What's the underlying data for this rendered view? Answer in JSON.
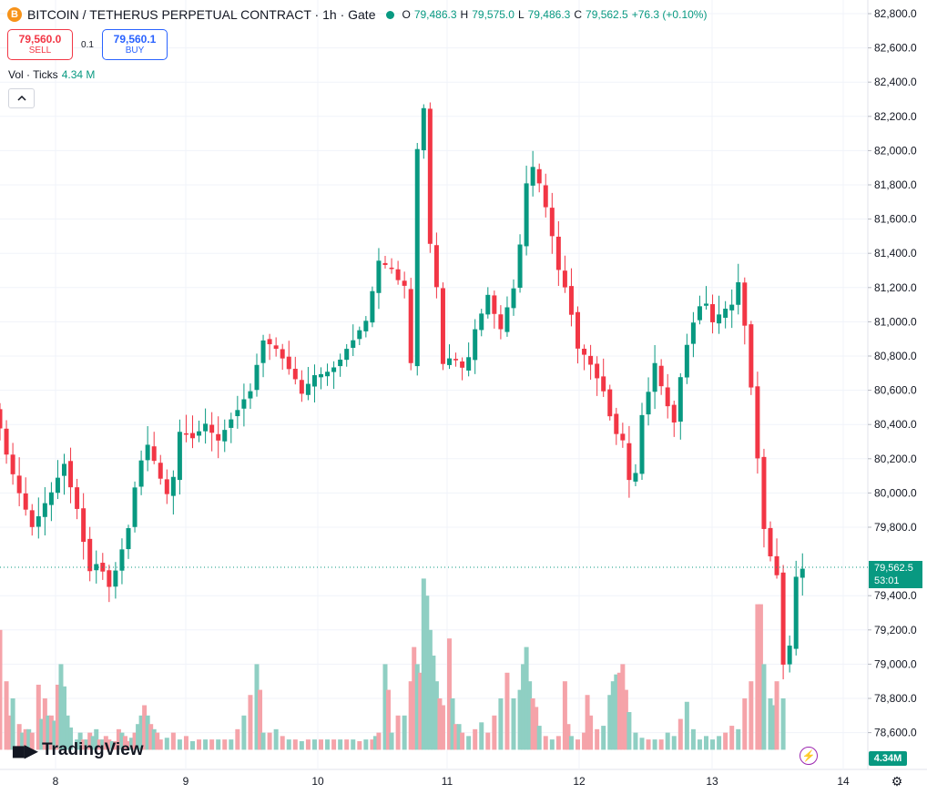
{
  "header": {
    "coin_icon": "B",
    "symbol_line": "BITCOIN / TETHERUS PERPETUAL CONTRACT · 1h · Gate",
    "status_color": "#089981",
    "ohlc": {
      "o_label": "O",
      "o_value": "79,486.3",
      "h_label": "H",
      "h_value": "79,575.0",
      "l_label": "L",
      "l_value": "79,486.3",
      "c_label": "C",
      "c_value": "79,562.5",
      "change": "+76.3 (+0.10%)"
    }
  },
  "trade": {
    "sell_price": "79,560.0",
    "sell_label": "SELL",
    "spread": "0.1",
    "buy_price": "79,560.1",
    "buy_label": "BUY"
  },
  "volume_legend": {
    "label": "Vol · Ticks",
    "value": "4.34 M"
  },
  "collapse_icon": "chevron-up-icon",
  "logo_text": "TradingView",
  "price_tag": {
    "price": "79,562.5",
    "countdown": "53:01"
  },
  "volume_tag": "4.34M",
  "colors": {
    "up": "#089981",
    "down": "#f23645",
    "up_vol": "#8fcfc3",
    "down_vol": "#f5a3a9"
  },
  "chart_data": {
    "type": "candlestick",
    "interval": "1h",
    "y_ticks": [
      "82,800.0",
      "82,600.0",
      "82,400.0",
      "82,200.0",
      "82,000.0",
      "81,800.0",
      "81,600.0",
      "81,400.0",
      "81,200.0",
      "81,000.0",
      "80,800.0",
      "80,600.0",
      "80,400.0",
      "80,200.0",
      "80,000.0",
      "79,800.0",
      "79,400.0",
      "79,200.0",
      "79,000.0",
      "78,800.0",
      "78,600.0"
    ],
    "ylim": [
      78500,
      82860
    ],
    "x_ticks": [
      "8",
      "9",
      "10",
      "11",
      "12",
      "13",
      "14"
    ],
    "last_price": 79562.5,
    "current_ohlc": {
      "open": 79486.3,
      "high": 79575.0,
      "low": 79486.3,
      "close": 79562.5
    },
    "path": [
      [
        0,
        80500
      ],
      [
        3,
        80100
      ],
      [
        6,
        79800
      ],
      [
        9,
        80000
      ],
      [
        11,
        80180
      ],
      [
        13,
        79900
      ],
      [
        15,
        79550
      ],
      [
        16.5,
        79600
      ],
      [
        18,
        79450
      ],
      [
        19.5,
        79600
      ],
      [
        21,
        79800
      ],
      [
        22.5,
        80150
      ],
      [
        24,
        80280
      ],
      [
        26,
        80080
      ],
      [
        27.5,
        79950
      ],
      [
        29,
        80350
      ],
      [
        31,
        80330
      ],
      [
        33,
        80400
      ],
      [
        35,
        80300
      ],
      [
        37,
        80440
      ],
      [
        40,
        80600
      ],
      [
        42,
        80900
      ],
      [
        44.5,
        80820
      ],
      [
        46.5,
        80700
      ],
      [
        48,
        80580
      ],
      [
        50,
        80680
      ],
      [
        52,
        80700
      ],
      [
        54,
        80780
      ],
      [
        56,
        80900
      ],
      [
        58,
        81000
      ],
      [
        60,
        81350
      ],
      [
        62,
        81300
      ],
      [
        64,
        81200
      ],
      [
        65,
        80750
      ],
      [
        66,
        82000
      ],
      [
        67,
        82250
      ],
      [
        68,
        81450
      ],
      [
        69,
        81200
      ],
      [
        70,
        80750
      ],
      [
        71.5,
        80800
      ],
      [
        73.5,
        80700
      ],
      [
        75,
        80950
      ],
      [
        77,
        81150
      ],
      [
        79,
        80950
      ],
      [
        81,
        81200
      ],
      [
        82,
        81450
      ],
      [
        83,
        81800
      ],
      [
        84,
        81900
      ],
      [
        85,
        81800
      ],
      [
        86.5,
        81600
      ],
      [
        88,
        81300
      ],
      [
        89.5,
        81150
      ],
      [
        91,
        80850
      ],
      [
        93,
        80750
      ],
      [
        95,
        80600
      ],
      [
        96.5,
        80380
      ],
      [
        98,
        80300
      ],
      [
        99.5,
        79950
      ],
      [
        101,
        80450
      ],
      [
        103,
        80750
      ],
      [
        104.5,
        80550
      ],
      [
        106,
        80420
      ],
      [
        107.5,
        80800
      ],
      [
        109,
        81000
      ],
      [
        110.5,
        81150
      ],
      [
        112,
        81000
      ],
      [
        113.5,
        81050
      ],
      [
        115,
        81100
      ],
      [
        116,
        81230
      ],
      [
        117.5,
        80850
      ],
      [
        118.5,
        80400
      ],
      [
        119.5,
        80000
      ],
      [
        120.5,
        79600
      ],
      [
        121.5,
        79650
      ],
      [
        122.5,
        79400
      ],
      [
        123.2,
        78850
      ],
      [
        124,
        79100
      ],
      [
        125,
        79500
      ],
      [
        125.8,
        79562.5
      ]
    ],
    "volume": [
      [
        0,
        79200,
        "d"
      ],
      [
        1,
        78900,
        "d"
      ],
      [
        1.5,
        78700,
        "d"
      ],
      [
        2,
        78800,
        "u"
      ],
      [
        3,
        78650,
        "d"
      ],
      [
        3.5,
        78600,
        "u"
      ],
      [
        4,
        78620,
        "d"
      ],
      [
        4.5,
        78620,
        "u"
      ],
      [
        5,
        78600,
        "d"
      ],
      [
        6,
        78880,
        "d"
      ],
      [
        6.5,
        78680,
        "u"
      ],
      [
        7,
        78800,
        "d"
      ],
      [
        7.5,
        78700,
        "u"
      ],
      [
        8,
        78700,
        "d"
      ],
      [
        8.5,
        78670,
        "u"
      ],
      [
        9,
        78880,
        "d"
      ],
      [
        9.5,
        79000,
        "u"
      ],
      [
        10,
        78870,
        "u"
      ],
      [
        10.5,
        78700,
        "u"
      ],
      [
        11,
        78630,
        "u"
      ],
      [
        12,
        78560,
        "u"
      ],
      [
        12.5,
        78600,
        "u"
      ],
      [
        13,
        78560,
        "d"
      ],
      [
        13.5,
        78560,
        "u"
      ],
      [
        14,
        78600,
        "d"
      ],
      [
        14.5,
        78580,
        "u"
      ],
      [
        15,
        78620,
        "u"
      ],
      [
        15.5,
        78560,
        "d"
      ],
      [
        16,
        78560,
        "u"
      ],
      [
        16.5,
        78580,
        "d"
      ],
      [
        17,
        78560,
        "d"
      ],
      [
        17.5,
        78550,
        "u"
      ],
      [
        18,
        78550,
        "d"
      ],
      [
        18.5,
        78620,
        "d"
      ],
      [
        19,
        78600,
        "u"
      ],
      [
        19.5,
        78580,
        "d"
      ],
      [
        20,
        78550,
        "d"
      ],
      [
        20.5,
        78570,
        "u"
      ],
      [
        21,
        78600,
        "d"
      ],
      [
        21.5,
        78650,
        "u"
      ],
      [
        22,
        78700,
        "u"
      ],
      [
        22.5,
        78760,
        "d"
      ],
      [
        23,
        78700,
        "u"
      ],
      [
        23.5,
        78650,
        "d"
      ],
      [
        24,
        78620,
        "u"
      ],
      [
        24.5,
        78600,
        "d"
      ],
      [
        25,
        78560,
        "d"
      ],
      [
        26,
        78570,
        "u"
      ],
      [
        27,
        78600,
        "d"
      ],
      [
        28,
        78560,
        "u"
      ],
      [
        29,
        78580,
        "d"
      ],
      [
        30,
        78550,
        "u"
      ],
      [
        31,
        78560,
        "d"
      ],
      [
        32,
        78560,
        "u"
      ],
      [
        33,
        78560,
        "d"
      ],
      [
        34,
        78560,
        "u"
      ],
      [
        35,
        78560,
        "d"
      ],
      [
        36,
        78560,
        "u"
      ],
      [
        37,
        78620,
        "d"
      ],
      [
        38,
        78700,
        "u"
      ],
      [
        39,
        78820,
        "d"
      ],
      [
        40,
        79000,
        "u"
      ],
      [
        40.5,
        78850,
        "d"
      ],
      [
        41,
        78600,
        "u"
      ],
      [
        42,
        78600,
        "d"
      ],
      [
        43,
        78620,
        "u"
      ],
      [
        44,
        78580,
        "d"
      ],
      [
        45,
        78560,
        "u"
      ],
      [
        46,
        78560,
        "d"
      ],
      [
        47,
        78550,
        "u"
      ],
      [
        48,
        78560,
        "d"
      ],
      [
        49,
        78560,
        "u"
      ],
      [
        50,
        78560,
        "d"
      ],
      [
        51,
        78560,
        "u"
      ],
      [
        52,
        78560,
        "d"
      ],
      [
        53,
        78560,
        "u"
      ],
      [
        54,
        78560,
        "d"
      ],
      [
        55,
        78560,
        "u"
      ],
      [
        56,
        78550,
        "d"
      ],
      [
        57,
        78560,
        "u"
      ],
      [
        58,
        78560,
        "d"
      ],
      [
        58.5,
        78580,
        "u"
      ],
      [
        59,
        78600,
        "d"
      ],
      [
        60,
        79000,
        "u"
      ],
      [
        60.5,
        78850,
        "d"
      ],
      [
        61,
        78600,
        "u"
      ],
      [
        62,
        78700,
        "d"
      ],
      [
        63,
        78700,
        "u"
      ],
      [
        64,
        78900,
        "d"
      ],
      [
        64.5,
        79100,
        "d"
      ],
      [
        65,
        79000,
        "u"
      ],
      [
        65.5,
        78950,
        "d"
      ],
      [
        66,
        79500,
        "u"
      ],
      [
        66.5,
        79400,
        "u"
      ],
      [
        67,
        79200,
        "u"
      ],
      [
        67.5,
        79050,
        "u"
      ],
      [
        68,
        78900,
        "u"
      ],
      [
        68.5,
        78800,
        "d"
      ],
      [
        69,
        78760,
        "d"
      ],
      [
        70,
        79150,
        "d"
      ],
      [
        70.5,
        78800,
        "u"
      ],
      [
        71,
        78650,
        "d"
      ],
      [
        71.5,
        78650,
        "u"
      ],
      [
        72,
        78600,
        "d"
      ],
      [
        73,
        78580,
        "u"
      ],
      [
        74,
        78620,
        "d"
      ],
      [
        75,
        78660,
        "u"
      ],
      [
        76,
        78600,
        "d"
      ],
      [
        77,
        78700,
        "d"
      ],
      [
        78,
        78800,
        "u"
      ],
      [
        79,
        78950,
        "d"
      ],
      [
        80,
        78800,
        "u"
      ],
      [
        81,
        78850,
        "u"
      ],
      [
        81.5,
        79000,
        "u"
      ],
      [
        82,
        79100,
        "u"
      ],
      [
        82.5,
        78900,
        "u"
      ],
      [
        83,
        78800,
        "d"
      ],
      [
        83.5,
        78750,
        "d"
      ],
      [
        84,
        78640,
        "u"
      ],
      [
        85,
        78580,
        "d"
      ],
      [
        86,
        78560,
        "u"
      ],
      [
        87,
        78580,
        "d"
      ],
      [
        88,
        78900,
        "d"
      ],
      [
        88.5,
        78650,
        "d"
      ],
      [
        89,
        78580,
        "u"
      ],
      [
        90,
        78560,
        "d"
      ],
      [
        91,
        78600,
        "d"
      ],
      [
        91.5,
        78820,
        "d"
      ],
      [
        92,
        78700,
        "d"
      ],
      [
        93,
        78620,
        "d"
      ],
      [
        94,
        78640,
        "u"
      ],
      [
        95,
        78820,
        "u"
      ],
      [
        95.5,
        78900,
        "u"
      ],
      [
        96,
        78940,
        "u"
      ],
      [
        96.5,
        78950,
        "d"
      ],
      [
        97,
        79000,
        "d"
      ],
      [
        97.5,
        78850,
        "d"
      ],
      [
        98,
        78720,
        "u"
      ],
      [
        99,
        78600,
        "u"
      ],
      [
        100,
        78570,
        "u"
      ],
      [
        101,
        78560,
        "d"
      ],
      [
        102,
        78560,
        "u"
      ],
      [
        103,
        78560,
        "d"
      ],
      [
        104,
        78600,
        "u"
      ],
      [
        105,
        78580,
        "u"
      ],
      [
        106,
        78680,
        "d"
      ],
      [
        107,
        78780,
        "u"
      ],
      [
        108,
        78620,
        "u"
      ],
      [
        109,
        78560,
        "u"
      ],
      [
        110,
        78580,
        "u"
      ],
      [
        111,
        78560,
        "u"
      ],
      [
        112,
        78580,
        "u"
      ],
      [
        113,
        78600,
        "d"
      ],
      [
        114,
        78640,
        "d"
      ],
      [
        115,
        78620,
        "u"
      ],
      [
        116,
        78800,
        "d"
      ],
      [
        117,
        78900,
        "d"
      ],
      [
        118,
        79350,
        "d"
      ],
      [
        118.5,
        79350,
        "d"
      ],
      [
        119,
        79000,
        "u"
      ],
      [
        120,
        78800,
        "u"
      ],
      [
        120.5,
        78760,
        "u"
      ],
      [
        121,
        78900,
        "d"
      ],
      [
        122,
        78800,
        "u"
      ]
    ]
  }
}
